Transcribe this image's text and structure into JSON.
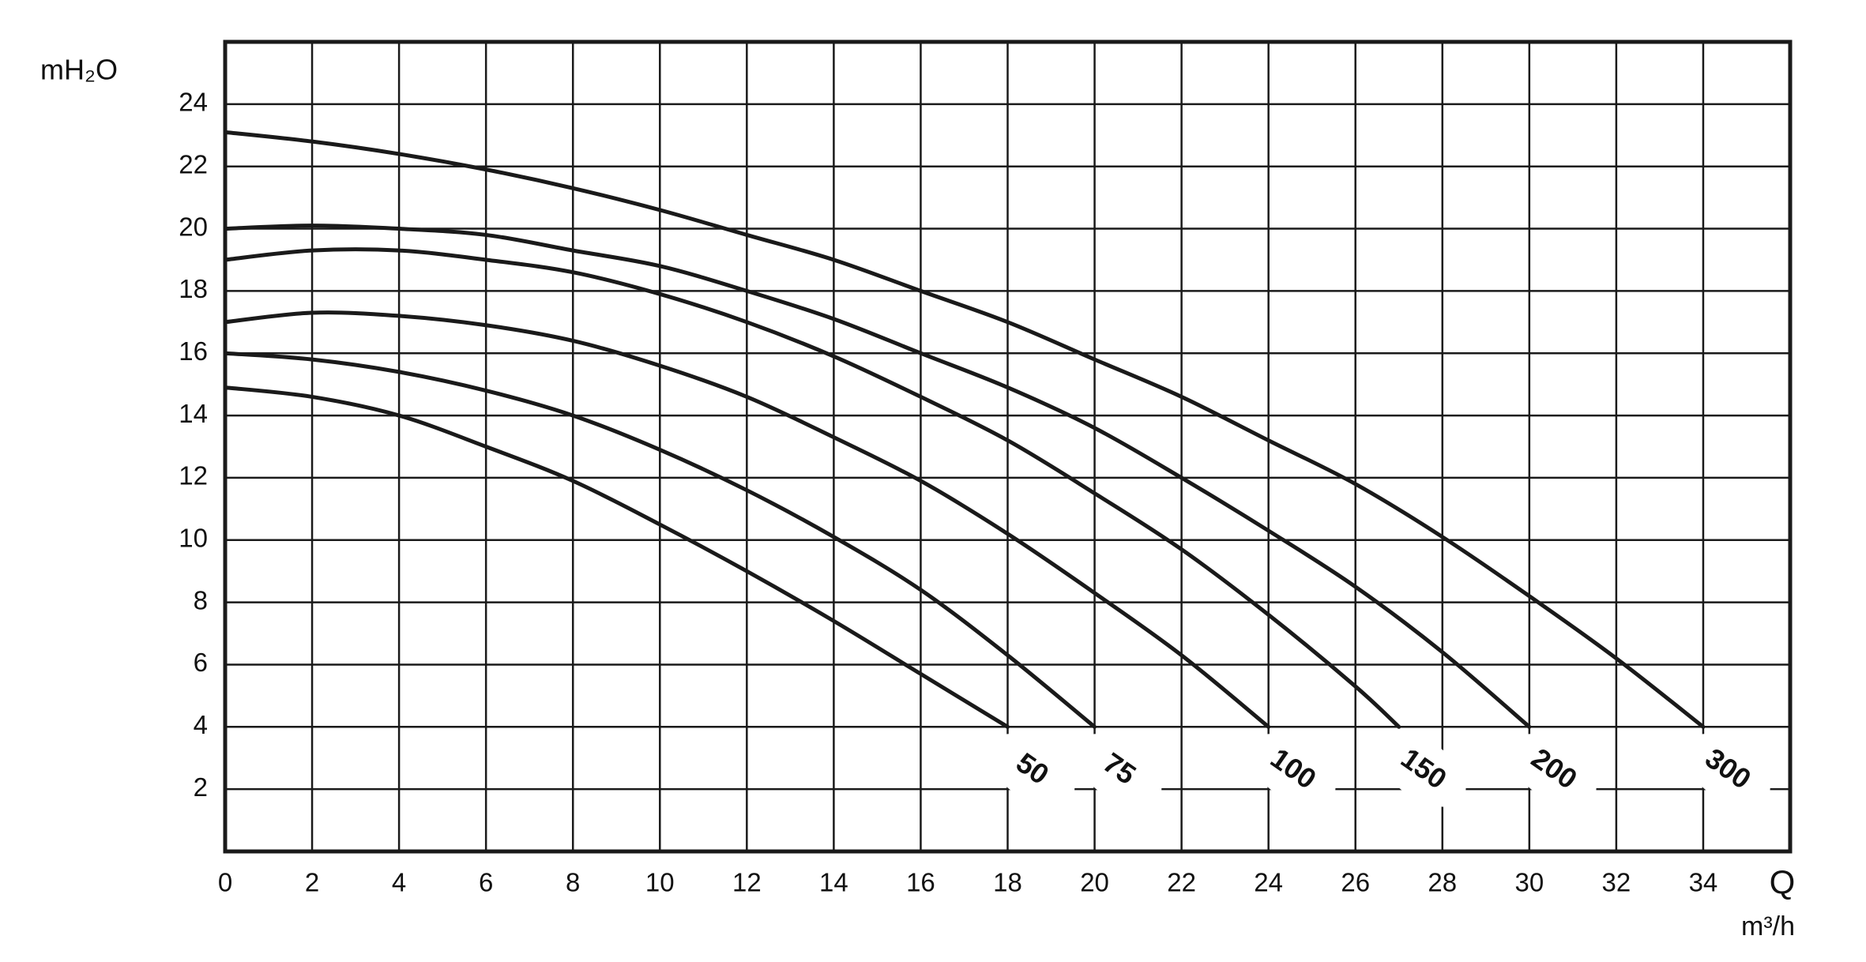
{
  "chart_data": {
    "type": "line",
    "y_label": "mH₂O",
    "x_label": "Q",
    "x_unit": "m³/h",
    "xlim": [
      0,
      36
    ],
    "xticks": [
      0,
      2,
      4,
      6,
      8,
      10,
      12,
      14,
      16,
      18,
      20,
      22,
      24,
      26,
      28,
      30,
      32,
      34
    ],
    "ylim": [
      0,
      26
    ],
    "yticks": [
      2,
      4,
      6,
      8,
      10,
      12,
      14,
      16,
      18,
      20,
      22,
      24
    ],
    "grid": true,
    "series": [
      {
        "name": "50",
        "color": "#1a1a1a",
        "x": [
          0,
          2,
          4,
          6,
          8,
          10,
          12,
          14,
          16,
          18
        ],
        "values": [
          14.9,
          14.6,
          14.0,
          13.0,
          11.9,
          10.5,
          9.0,
          7.4,
          5.7,
          4.0
        ]
      },
      {
        "name": "75",
        "color": "#1a1a1a",
        "x": [
          0,
          2,
          4,
          6,
          8,
          10,
          12,
          14,
          16,
          18,
          20
        ],
        "values": [
          16.0,
          15.8,
          15.4,
          14.8,
          14.0,
          12.9,
          11.6,
          10.1,
          8.4,
          6.3,
          4.0
        ]
      },
      {
        "name": "100",
        "color": "#1a1a1a",
        "x": [
          0,
          2,
          4,
          6,
          8,
          10,
          12,
          14,
          16,
          18,
          20,
          22,
          24
        ],
        "values": [
          17.0,
          17.3,
          17.2,
          16.9,
          16.4,
          15.6,
          14.6,
          13.3,
          11.9,
          10.2,
          8.3,
          6.3,
          4.0
        ]
      },
      {
        "name": "150",
        "color": "#1a1a1a",
        "x": [
          0,
          2,
          4,
          6,
          8,
          10,
          12,
          14,
          16,
          18,
          20,
          22,
          24,
          26,
          27
        ],
        "values": [
          19.0,
          19.3,
          19.3,
          19.0,
          18.6,
          17.9,
          17.0,
          15.9,
          14.6,
          13.2,
          11.5,
          9.7,
          7.6,
          5.3,
          4.0
        ]
      },
      {
        "name": "200",
        "color": "#1a1a1a",
        "x": [
          0,
          2,
          4,
          6,
          8,
          10,
          12,
          14,
          16,
          18,
          20,
          22,
          24,
          26,
          28,
          30
        ],
        "values": [
          20.0,
          20.1,
          20.0,
          19.8,
          19.3,
          18.8,
          18.0,
          17.1,
          16.0,
          14.9,
          13.6,
          12.0,
          10.3,
          8.5,
          6.4,
          4.0
        ]
      },
      {
        "name": "300",
        "color": "#1a1a1a",
        "x": [
          0,
          2,
          4,
          6,
          8,
          10,
          12,
          14,
          16,
          18,
          20,
          22,
          24,
          26,
          28,
          30,
          32,
          34
        ],
        "values": [
          23.1,
          22.8,
          22.4,
          21.9,
          21.3,
          20.6,
          19.8,
          19.0,
          18.0,
          17.0,
          15.8,
          14.6,
          13.2,
          11.8,
          10.1,
          8.2,
          6.2,
          4.0
        ]
      }
    ]
  }
}
